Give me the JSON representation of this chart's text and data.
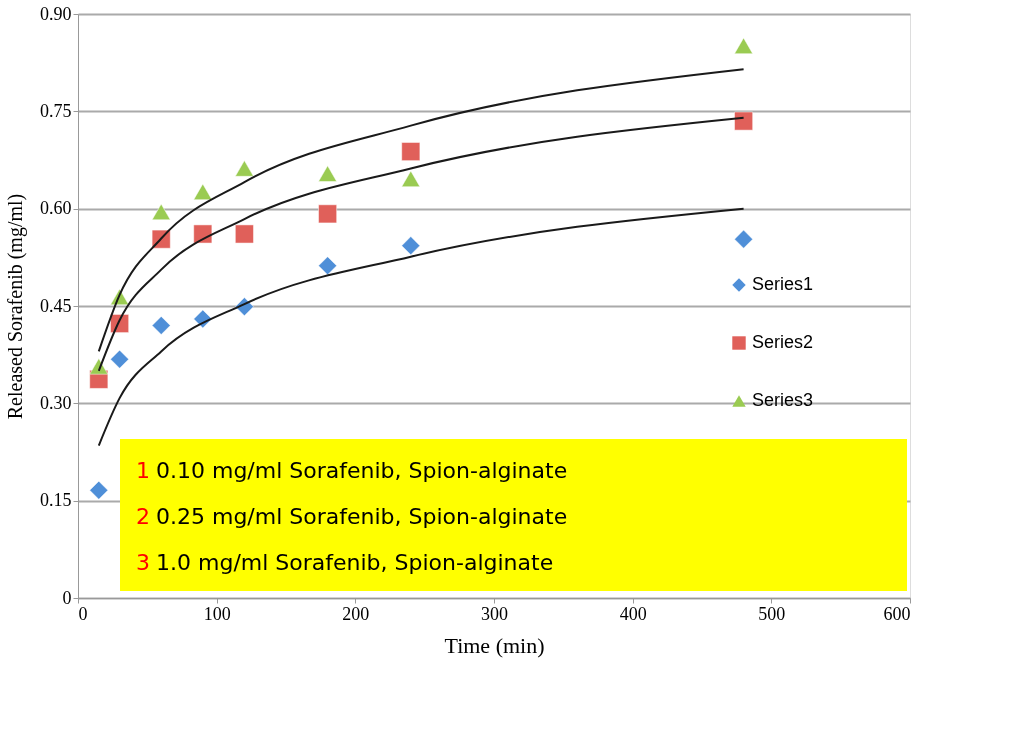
{
  "chart_data": {
    "type": "scatter",
    "xlabel": "Time (min)",
    "ylabel": "Released Sorafenib (mg/ml)",
    "x": [
      15,
      30,
      60,
      90,
      120,
      180,
      240,
      480
    ],
    "series": [
      {
        "name": "Series1",
        "color": "#4f8fd8",
        "marker": "diamond",
        "values": [
          0.166,
          0.368,
          0.42,
          0.43,
          0.449,
          0.512,
          0.543,
          0.553
        ]
      },
      {
        "name": "Series2",
        "color": "#e0605a",
        "marker": "square",
        "values": [
          0.337,
          0.423,
          0.553,
          0.561,
          0.561,
          0.592,
          0.688,
          0.735
        ]
      },
      {
        "name": "Series3",
        "color": "#9acb52",
        "marker": "triangle",
        "values": [
          0.357,
          0.464,
          0.595,
          0.626,
          0.662,
          0.654,
          0.646,
          0.851
        ]
      },
      {
        "type": "line",
        "color": "#1a1a1a",
        "marker": "none",
        "x": [
          15,
          30,
          60,
          120,
          240,
          480
        ],
        "values": [
          0.235,
          0.308,
          0.38,
          0.453,
          0.526,
          0.6
        ]
      },
      {
        "type": "line",
        "color": "#1a1a1a",
        "marker": "none",
        "x": [
          15,
          30,
          60,
          120,
          240,
          480
        ],
        "values": [
          0.35,
          0.428,
          0.506,
          0.584,
          0.662,
          0.74
        ]
      },
      {
        "type": "line",
        "color": "#1a1a1a",
        "marker": "none",
        "x": [
          15,
          30,
          60,
          120,
          240,
          480
        ],
        "values": [
          0.38,
          0.467,
          0.554,
          0.641,
          0.728,
          0.815
        ]
      }
    ],
    "xlim": [
      0,
      600
    ],
    "xticks": [
      0,
      100,
      200,
      300,
      400,
      500,
      600
    ],
    "ylim": [
      0,
      0.9
    ],
    "yticks": [
      {
        "value": 0,
        "label": "0"
      },
      0.15,
      {
        "value": 0.3,
        "label": "0.30"
      },
      0.45,
      {
        "value": 0.6,
        "label": "0.60"
      },
      0.75,
      {
        "value": 0.9,
        "label": "0.90"
      }
    ],
    "grid": "y",
    "legend": "right",
    "annotations": [
      "1 0.10 mg/ml Sorafenib, Spion-alginate",
      "2 0.25 mg/ml Sorafenib, Spion-alginate",
      "3 1.0 mg/ml Sorafenib, Spion-alginate"
    ]
  }
}
